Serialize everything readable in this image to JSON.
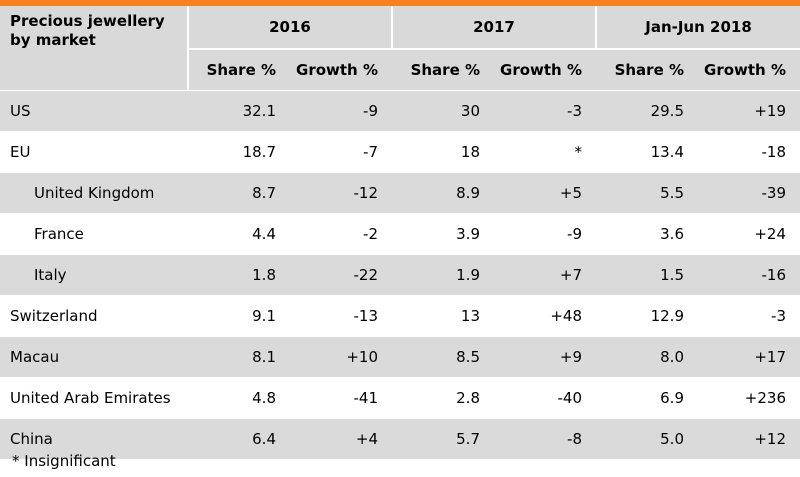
{
  "header": {
    "title_line1": "Precious jewellery",
    "title_line2": "by market",
    "periods": [
      "2016",
      "2017",
      "Jan-Jun 2018"
    ],
    "share_label": "Share %",
    "growth_label": "Growth %"
  },
  "rows": [
    {
      "label": "US",
      "indent": false,
      "s16": "32.1",
      "g16": "-9",
      "s17": "30",
      "g17": "-3",
      "s18": "29.5",
      "g18": "+19"
    },
    {
      "label": "EU",
      "indent": false,
      "s16": "18.7",
      "g16": "-7",
      "s17": "18",
      "g17": "*",
      "s18": "13.4",
      "g18": "-18"
    },
    {
      "label": "United Kingdom",
      "indent": true,
      "s16": "8.7",
      "g16": "-12",
      "s17": "8.9",
      "g17": "+5",
      "s18": "5.5",
      "g18": "-39"
    },
    {
      "label": "France",
      "indent": true,
      "s16": "4.4",
      "g16": "-2",
      "s17": "3.9",
      "g17": "-9",
      "s18": "3.6",
      "g18": "+24"
    },
    {
      "label": "Italy",
      "indent": true,
      "s16": "1.8",
      "g16": "-22",
      "s17": "1.9",
      "g17": "+7",
      "s18": "1.5",
      "g18": "-16"
    },
    {
      "label": "Switzerland",
      "indent": false,
      "s16": "9.1",
      "g16": "-13",
      "s17": "13",
      "g17": "+48",
      "s18": "12.9",
      "g18": "-3"
    },
    {
      "label": "Macau",
      "indent": false,
      "s16": "8.1",
      "g16": "+10",
      "s17": "8.5",
      "g17": "+9",
      "s18": "8.0",
      "g18": "+17"
    },
    {
      "label": "United Arab Emirates",
      "indent": false,
      "s16": "4.8",
      "g16": "-41",
      "s17": "2.8",
      "g17": "-40",
      "s18": "6.9",
      "g18": "+236"
    },
    {
      "label": "China",
      "indent": false,
      "s16": "6.4",
      "g16": "+4",
      "s17": "5.7",
      "g17": "-8",
      "s18": "5.0",
      "g18": "+12"
    }
  ],
  "footnote": "* Insignificant",
  "colors": {
    "accent_bar": "#f5821f",
    "header_bg": "#d9d9d9",
    "row_shade": "#dadada"
  }
}
